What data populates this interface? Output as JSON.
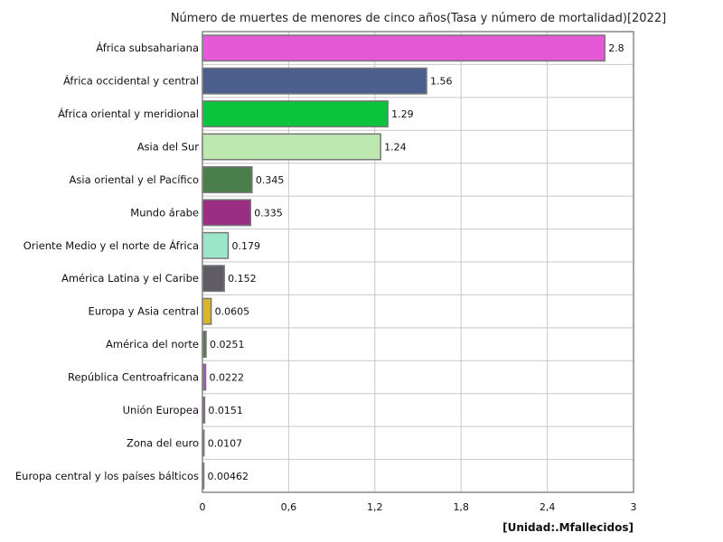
{
  "chart_data": {
    "type": "bar",
    "orientation": "horizontal",
    "title": "Número de muertes de menores de cinco años(Tasa y número de mortalidad)[2022]",
    "unit_label": "[Unidad:.Mfallecidos]",
    "xlim": [
      0,
      3
    ],
    "xticks": [
      0,
      0.6,
      1.2,
      1.8,
      2.4,
      3
    ],
    "xtick_labels": [
      "0",
      "0,6",
      "1,2",
      "1,8",
      "2,4",
      "3"
    ],
    "grid": true,
    "categories": [
      "África subsahariana",
      "África occidental y central",
      "África oriental y meridional",
      "Asia del Sur",
      "Asia oriental y el Pacífico",
      "Mundo árabe",
      "Oriente Medio y el norte de África",
      "América Latina y el Caribe",
      "Europa y Asia central",
      "América del norte",
      "República Centroafricana",
      "Unión Europea",
      "Zona del euro",
      "Europa central y los países bálticos"
    ],
    "values": [
      2.8,
      1.56,
      1.29,
      1.24,
      0.345,
      0.335,
      0.179,
      0.152,
      0.0605,
      0.0251,
      0.0222,
      0.0151,
      0.0107,
      0.00462
    ],
    "value_labels": [
      "2.8",
      "1.56",
      "1.29",
      "1.24",
      "0.345",
      "0.335",
      "0.179",
      "0.152",
      "0.0605",
      "0.0251",
      "0.0222",
      "0.0151",
      "0.0107",
      "0.00462"
    ],
    "colors": [
      "#e35ad6",
      "#4b5e8c",
      "#0bc43e",
      "#bde8b0",
      "#4a7e4a",
      "#9a2e82",
      "#9de6cc",
      "#5f5c66",
      "#d7b52e",
      "#5a7d4f",
      "#a45ab8",
      "#8c5a98",
      "#777777",
      "#aaaaaa"
    ]
  }
}
